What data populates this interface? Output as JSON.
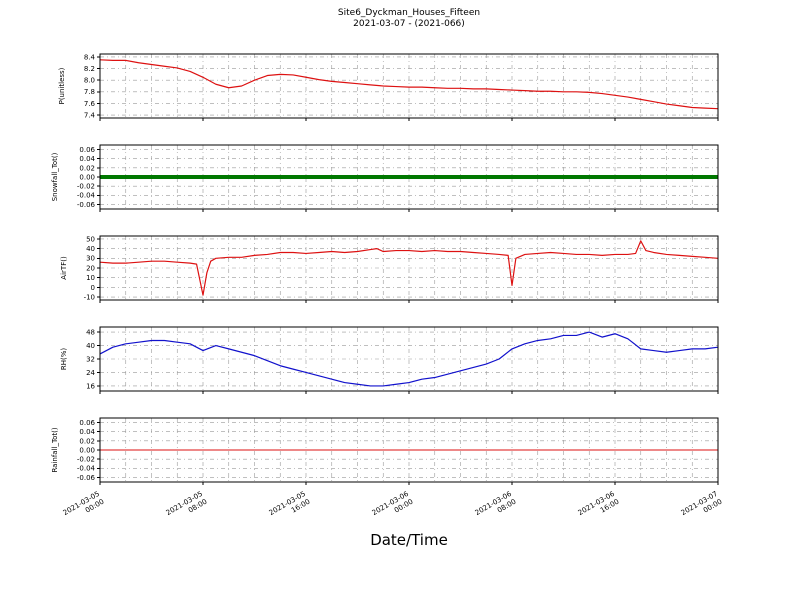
{
  "title": {
    "line1": "Site6_Dyckman_Houses_Fifteen",
    "line2": "2021-03-07 - (2021-066)"
  },
  "xlabel": "Date/Time",
  "style": {
    "grid_color": "#999999",
    "axis_color": "#000000",
    "background": "#ffffff"
  },
  "x_axis": {
    "range_hours": [
      0,
      48
    ],
    "tick_hours": [
      0,
      8,
      16,
      24,
      32,
      40,
      48
    ],
    "minor_grid_step_hours": 2,
    "tick_labels": [
      {
        "line1": "2021-03-05",
        "line2": "00:00"
      },
      {
        "line1": "2021-03-05",
        "line2": "08:00"
      },
      {
        "line1": "2021-03-05",
        "line2": "16:00"
      },
      {
        "line1": "2021-03-06",
        "line2": "00:00"
      },
      {
        "line1": "2021-03-06",
        "line2": "08:00"
      },
      {
        "line1": "2021-03-06",
        "line2": "16:00"
      },
      {
        "line1": "2021-03-07",
        "line2": "00:00"
      }
    ]
  },
  "chart_data": [
    {
      "type": "line",
      "ylabel": "P(unitless)",
      "color": "#dd1111",
      "linewidth": 1.2,
      "ylim": [
        7.35,
        8.45
      ],
      "yticks": [
        8.4,
        8.2,
        8.0,
        7.8,
        7.6,
        7.4
      ],
      "ytick_labels": [
        "8.4",
        "8.2",
        "8.0",
        "7.8",
        "7.6",
        "7.4"
      ],
      "x": [
        0,
        1,
        2,
        3,
        4,
        5,
        6,
        7,
        8,
        9,
        10,
        11,
        12,
        13,
        14,
        15,
        16,
        17,
        18,
        19,
        20,
        21,
        22,
        23,
        24,
        25,
        26,
        27,
        28,
        29,
        30,
        31,
        32,
        33,
        34,
        35,
        36,
        37,
        38,
        39,
        40,
        41,
        42,
        43,
        44,
        45,
        46,
        47,
        48
      ],
      "values": [
        8.35,
        8.34,
        8.34,
        8.3,
        8.27,
        8.24,
        8.21,
        8.15,
        8.05,
        7.93,
        7.87,
        7.9,
        8.0,
        8.08,
        8.1,
        8.09,
        8.05,
        8.01,
        7.98,
        7.96,
        7.94,
        7.92,
        7.9,
        7.89,
        7.88,
        7.88,
        7.87,
        7.86,
        7.86,
        7.85,
        7.85,
        7.84,
        7.83,
        7.82,
        7.81,
        7.81,
        7.8,
        7.8,
        7.79,
        7.77,
        7.74,
        7.71,
        7.67,
        7.63,
        7.59,
        7.56,
        7.53,
        7.52,
        7.51
      ]
    },
    {
      "type": "line",
      "ylabel": "Snowfall_Tot()",
      "color": "#007800",
      "linewidth": 4,
      "ylim": [
        -0.07,
        0.07
      ],
      "yticks": [
        0.06,
        0.04,
        0.02,
        0.0,
        -0.02,
        -0.04,
        -0.06
      ],
      "ytick_labels": [
        "0.06",
        "0.04",
        "0.02",
        "0.00",
        "-0.02",
        "-0.04",
        "-0.06"
      ],
      "x": [
        0,
        48
      ],
      "values": [
        0,
        0
      ]
    },
    {
      "type": "line",
      "ylabel": "AirTF()",
      "color": "#dd1111",
      "linewidth": 1.2,
      "ylim": [
        -13,
        53
      ],
      "yticks": [
        50,
        40,
        30,
        20,
        10,
        0,
        -10
      ],
      "ytick_labels": [
        "50",
        "40",
        "30",
        "20",
        "10",
        "0",
        "-10"
      ],
      "x": [
        0,
        1,
        2,
        3,
        4,
        5,
        6,
        7,
        7.5,
        8,
        8.3,
        8.6,
        9,
        10,
        11,
        12,
        13,
        14,
        15,
        16,
        17,
        18,
        19,
        20,
        21,
        21.5,
        22,
        23,
        24,
        25,
        26,
        27,
        28,
        29,
        30,
        31,
        31.7,
        32,
        32.3,
        33,
        34,
        35,
        36,
        37,
        38,
        39,
        40,
        41,
        41.6,
        42,
        42.4,
        43,
        44,
        45,
        46,
        47,
        48
      ],
      "values": [
        26,
        25,
        25,
        26,
        27,
        27,
        26,
        25,
        24,
        -8,
        15,
        27,
        30,
        31,
        31,
        33,
        34,
        36,
        36,
        35,
        36,
        37,
        36,
        37,
        39,
        40,
        37,
        38,
        38,
        37,
        38,
        37,
        37,
        36,
        35,
        34,
        33,
        2,
        30,
        34,
        35,
        36,
        35,
        34,
        34,
        33,
        34,
        34,
        35,
        48,
        38,
        36,
        34,
        33,
        32,
        31,
        30
      ]
    },
    {
      "type": "line",
      "ylabel": "RH(%)",
      "color": "#1111cc",
      "linewidth": 1.2,
      "ylim": [
        13,
        51
      ],
      "yticks": [
        48,
        40,
        32,
        24,
        16
      ],
      "ytick_labels": [
        "48",
        "40",
        "32",
        "24",
        "16"
      ],
      "x": [
        0,
        1,
        2,
        3,
        4,
        5,
        6,
        7,
        8,
        9,
        10,
        11,
        12,
        13,
        14,
        15,
        16,
        17,
        18,
        19,
        20,
        21,
        22,
        23,
        24,
        25,
        26,
        27,
        28,
        29,
        30,
        31,
        32,
        33,
        34,
        35,
        36,
        37,
        38,
        39,
        40,
        41,
        42,
        43,
        44,
        45,
        46,
        47,
        48
      ],
      "values": [
        35,
        39,
        41,
        42,
        43,
        43,
        42,
        41,
        37,
        40,
        38,
        36,
        34,
        31,
        28,
        26,
        24,
        22,
        20,
        18,
        17,
        16,
        16,
        17,
        18,
        20,
        21,
        23,
        25,
        27,
        29,
        32,
        38,
        41,
        43,
        44,
        46,
        46,
        48,
        45,
        47,
        44,
        38,
        37,
        36,
        37,
        38,
        38,
        39
      ]
    },
    {
      "type": "line",
      "ylabel": "Rainfall_Tot()",
      "color": "#dd1111",
      "linewidth": 1,
      "ylim": [
        -0.07,
        0.07
      ],
      "yticks": [
        0.06,
        0.04,
        0.02,
        0.0,
        -0.02,
        -0.04,
        -0.06
      ],
      "ytick_labels": [
        "0.06",
        "0.04",
        "0.02",
        "0.00",
        "-0.02",
        "-0.04",
        "-0.06"
      ],
      "x": [
        0,
        48
      ],
      "values": [
        0,
        0
      ]
    }
  ]
}
